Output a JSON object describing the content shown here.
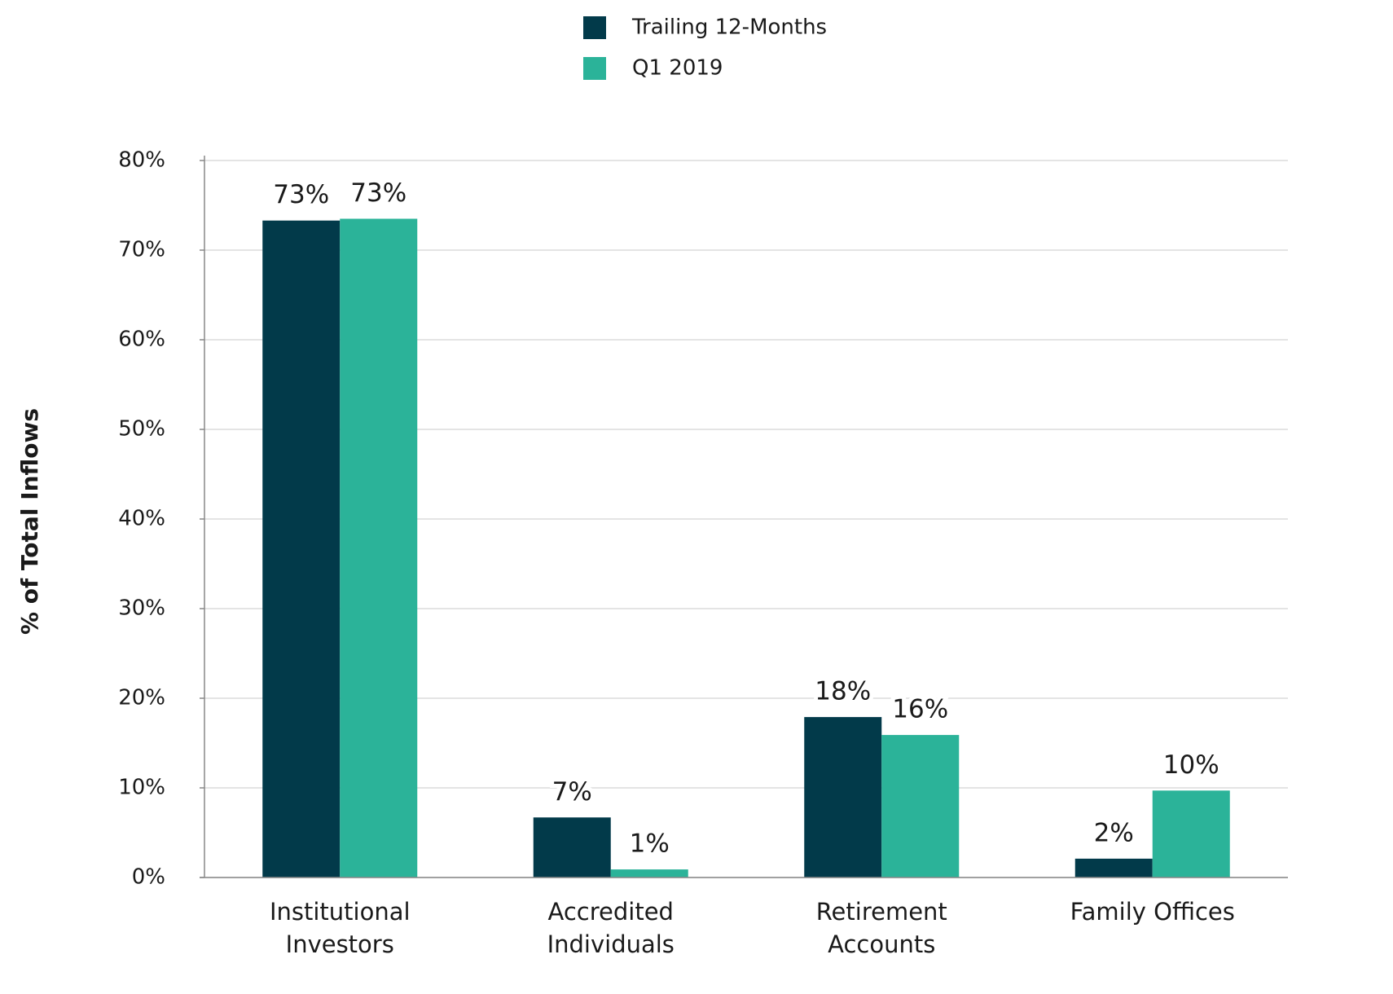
{
  "chart_data": {
    "type": "bar",
    "y_label": "% of Total Inflows",
    "categories": [
      "Institutional Investors",
      "Accredited Individuals",
      "Retirement Accounts",
      "Family Offices"
    ],
    "series": [
      {
        "name": "Trailing 12-Months",
        "color": "#023a4a",
        "values": [
          73.3,
          6.7,
          17.9,
          2.1
        ],
        "value_labels": [
          "73%",
          "7%",
          "18%",
          "2%"
        ]
      },
      {
        "name": "Q1 2019",
        "color": "#2bb399",
        "values": [
          73.5,
          0.9,
          15.9,
          9.7
        ],
        "value_labels": [
          "73%",
          "1%",
          "16%",
          "10%"
        ]
      }
    ],
    "ylim": [
      0,
      80
    ],
    "yticks": [
      {
        "value": 0,
        "label": "0%"
      },
      {
        "value": 10,
        "label": "10%"
      },
      {
        "value": 20,
        "label": "20%"
      },
      {
        "value": 30,
        "label": "30%"
      },
      {
        "value": 40,
        "label": "40%"
      },
      {
        "value": 50,
        "label": "50%"
      },
      {
        "value": 60,
        "label": "60%"
      },
      {
        "value": 70,
        "label": "70%"
      },
      {
        "value": 80,
        "label": "80%"
      }
    ],
    "grid": true,
    "legend": "top"
  }
}
